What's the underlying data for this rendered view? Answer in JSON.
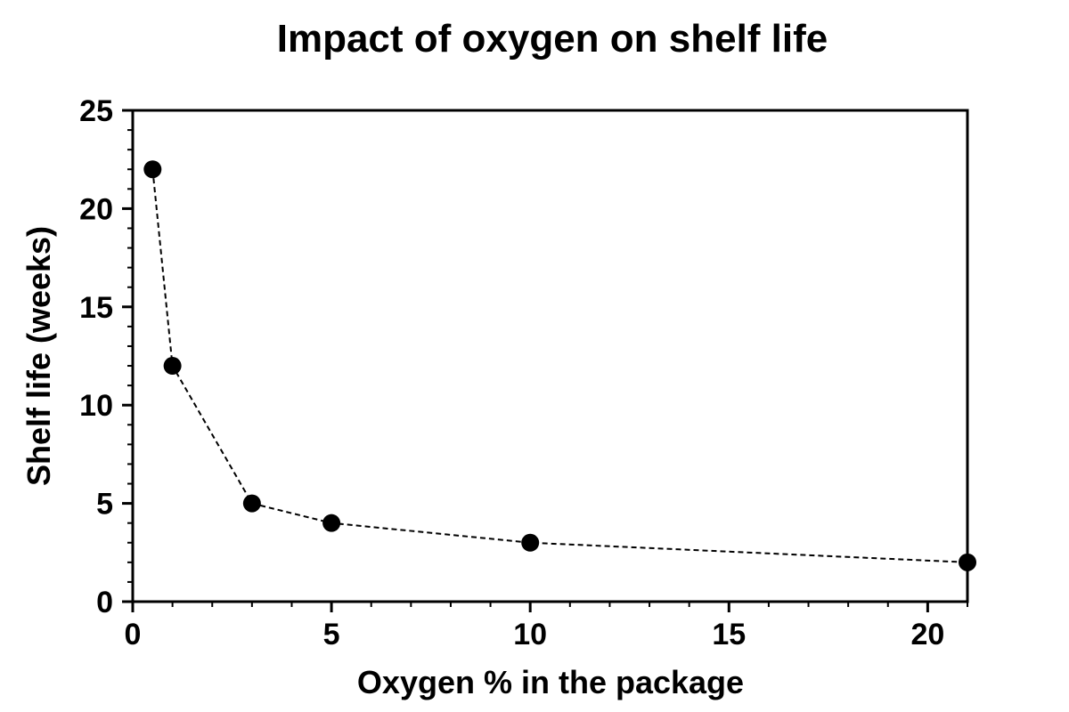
{
  "chart_data": {
    "type": "scatter",
    "title": "Impact of oxygen on shelf life",
    "xlabel": "Oxygen % in the package",
    "ylabel": "Shelf life (weeks)",
    "xlim": [
      0,
      21
    ],
    "ylim": [
      0,
      25
    ],
    "x_ticks": [
      0,
      5,
      10,
      15,
      20
    ],
    "y_ticks": [
      0,
      5,
      10,
      15,
      20,
      25
    ],
    "x_minor_step": 1,
    "y_minor_step": 1,
    "grid": false,
    "line_style": "dashed",
    "marker": "filled-circle",
    "colors": {
      "marker": "#000000",
      "line": "#000000",
      "axes": "#000000"
    },
    "series": [
      {
        "x": [
          0.5,
          1,
          3,
          5,
          10,
          21
        ],
        "y": [
          22,
          12,
          5,
          4,
          3,
          2
        ]
      }
    ]
  }
}
